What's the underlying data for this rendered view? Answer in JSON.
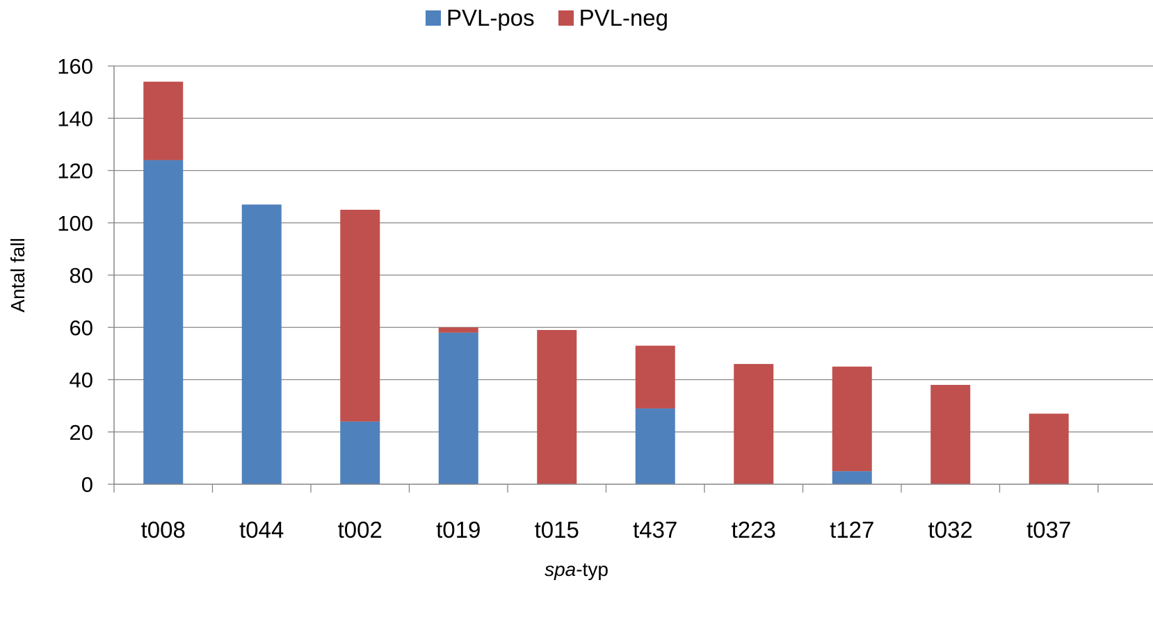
{
  "colors": {
    "pvl_pos": "#4f81bd",
    "pvl_neg": "#c0504d",
    "grid": "#868686",
    "axis": "#868686"
  },
  "legend": {
    "items": [
      {
        "label": "PVL-pos",
        "color": "#4f81bd"
      },
      {
        "label": "PVL-neg",
        "color": "#c0504d"
      }
    ],
    "position": "top-center"
  },
  "axes": {
    "xlabel_italic": "spa",
    "xlabel_rest": "-typ",
    "ylabel": "Antal fall"
  },
  "chart_data": {
    "type": "bar",
    "stacked": true,
    "categories": [
      "t008",
      "t044",
      "t002",
      "t019",
      "t015",
      "t437",
      "t223",
      "t127",
      "t032",
      "t037"
    ],
    "series": [
      {
        "name": "PVL-pos",
        "values": [
          124,
          107,
          24,
          58,
          0,
          29,
          0,
          5,
          0,
          0
        ]
      },
      {
        "name": "PVL-neg",
        "values": [
          30,
          0,
          81,
          2,
          59,
          24,
          46,
          40,
          38,
          27
        ]
      }
    ],
    "xlabel": "spa-typ",
    "ylabel": "Antal fall",
    "ylim": [
      0,
      160
    ],
    "yticks": [
      0,
      20,
      40,
      60,
      80,
      100,
      120,
      140,
      160
    ],
    "grid": true,
    "legend": "top-center"
  }
}
